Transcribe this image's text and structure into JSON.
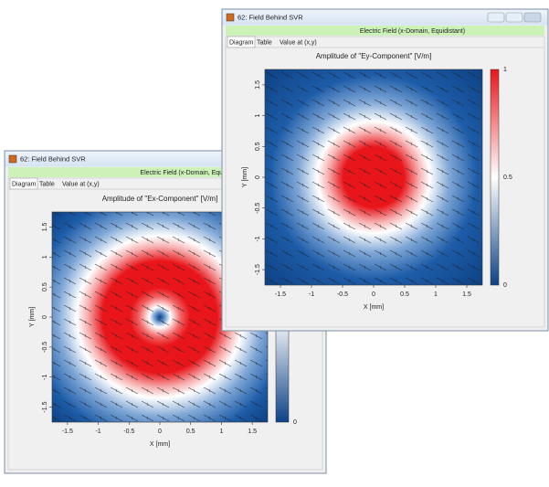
{
  "windows": [
    {
      "title": "62: Field Behind SVR",
      "banner": "Electric Field (x-Domain, Equidistant)",
      "tabs": [
        "Diagram",
        "Table",
        "Value at (x,y)"
      ],
      "plot": {
        "title": "Amplitude of \"Ex-Component\"  [V/m]",
        "x_label": "X [mm]",
        "y_label": "Y [mm]",
        "xticks": [
          -1.5,
          -1,
          -0.5,
          0,
          0.5,
          1,
          1.5
        ],
        "yticks": [
          1.5,
          1,
          0.5,
          0,
          -0.5,
          -1,
          -1.5
        ],
        "colorbar_ticks": [
          0
        ]
      }
    },
    {
      "title": "62: Field Behind SVR",
      "banner": "Electric Field (x-Domain, Equidistant)",
      "tabs": [
        "Diagram",
        "Table",
        "Value at (x,y)"
      ],
      "plot": {
        "title": "Amplitude of \"Ey-Component\"  [V/m]",
        "x_label": "X [mm]",
        "y_label": "Y [mm]",
        "xticks": [
          -1.5,
          -1,
          -0.5,
          0,
          0.5,
          1,
          1.5
        ],
        "yticks": [
          1.5,
          1,
          0.5,
          0,
          -0.5,
          -1,
          -1.5
        ],
        "colorbar_ticks": [
          1,
          0.5,
          0
        ]
      }
    }
  ]
}
